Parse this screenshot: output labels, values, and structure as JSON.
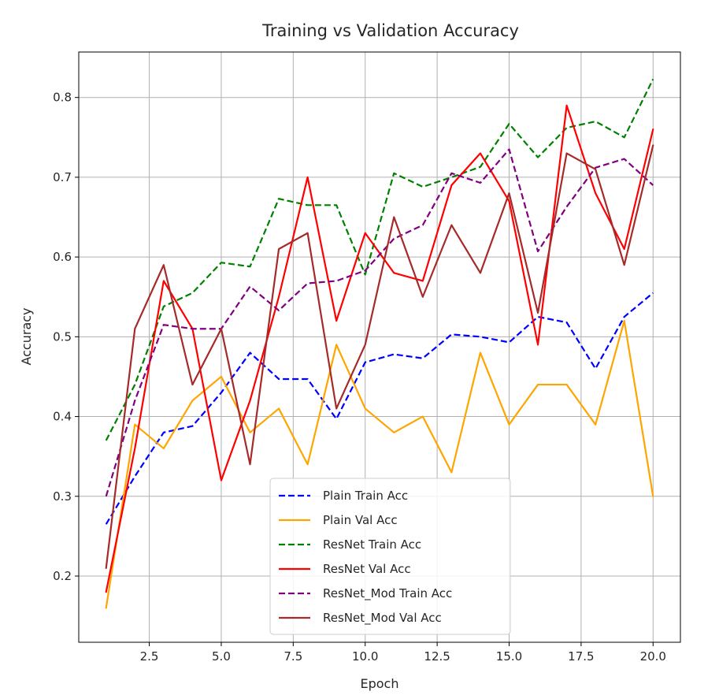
{
  "chart_data": {
    "type": "line",
    "title": "Training vs Validation Accuracy",
    "xlabel": "Epoch",
    "ylabel": "Accuracy",
    "xlim": [
      0.05,
      20.95
    ],
    "ylim": [
      0.117,
      0.857
    ],
    "xticks": [
      2.5,
      5.0,
      7.5,
      10.0,
      12.5,
      15.0,
      17.5,
      20.0
    ],
    "xtick_labels": [
      "2.5",
      "5.0",
      "7.5",
      "10.0",
      "12.5",
      "15.0",
      "17.5",
      "20.0"
    ],
    "yticks": [
      0.2,
      0.3,
      0.4,
      0.5,
      0.6,
      0.7,
      0.8
    ],
    "ytick_labels": [
      "0.2",
      "0.3",
      "0.4",
      "0.5",
      "0.6",
      "0.7",
      "0.8"
    ],
    "grid": true,
    "legend_position": "lower-center",
    "x": [
      1,
      2,
      3,
      4,
      5,
      6,
      7,
      8,
      9,
      10,
      11,
      12,
      13,
      14,
      15,
      16,
      17,
      18,
      19,
      20
    ],
    "series": [
      {
        "name": "Plain Train Acc",
        "color": "#0000ff",
        "dashed": true,
        "values": [
          0.265,
          0.325,
          0.38,
          0.388,
          0.43,
          0.48,
          0.447,
          0.447,
          0.397,
          0.468,
          0.478,
          0.473,
          0.503,
          0.5,
          0.493,
          0.525,
          0.518,
          0.46,
          0.525,
          0.555
        ]
      },
      {
        "name": "Plain Val Acc",
        "color": "#ffa500",
        "dashed": false,
        "values": [
          0.16,
          0.39,
          0.36,
          0.42,
          0.45,
          0.38,
          0.41,
          0.34,
          0.49,
          0.41,
          0.38,
          0.4,
          0.33,
          0.48,
          0.39,
          0.44,
          0.44,
          0.39,
          0.52,
          0.3
        ]
      },
      {
        "name": "ResNet Train Acc",
        "color": "#008000",
        "dashed": true,
        "values": [
          0.37,
          0.44,
          0.538,
          0.555,
          0.593,
          0.588,
          0.673,
          0.665,
          0.665,
          0.578,
          0.705,
          0.688,
          0.7,
          0.713,
          0.767,
          0.725,
          0.762,
          0.77,
          0.75,
          0.823
        ]
      },
      {
        "name": "ResNet Val Acc",
        "color": "#ff0000",
        "dashed": false,
        "values": [
          0.18,
          0.36,
          0.57,
          0.51,
          0.32,
          0.42,
          0.55,
          0.7,
          0.52,
          0.63,
          0.58,
          0.57,
          0.69,
          0.73,
          0.67,
          0.49,
          0.79,
          0.68,
          0.61,
          0.76
        ]
      },
      {
        "name": "ResNet_Mod Train Acc",
        "color": "#800080",
        "dashed": true,
        "values": [
          0.3,
          0.42,
          0.515,
          0.51,
          0.51,
          0.563,
          0.533,
          0.567,
          0.57,
          0.583,
          0.623,
          0.64,
          0.705,
          0.693,
          0.735,
          0.607,
          0.663,
          0.712,
          0.723,
          0.69
        ]
      },
      {
        "name": "ResNet_Mod Val Acc",
        "color": "#a52a2a",
        "dashed": false,
        "values": [
          0.21,
          0.51,
          0.59,
          0.44,
          0.51,
          0.34,
          0.61,
          0.63,
          0.41,
          0.49,
          0.65,
          0.55,
          0.64,
          0.58,
          0.68,
          0.53,
          0.73,
          0.71,
          0.59,
          0.74
        ]
      }
    ]
  }
}
